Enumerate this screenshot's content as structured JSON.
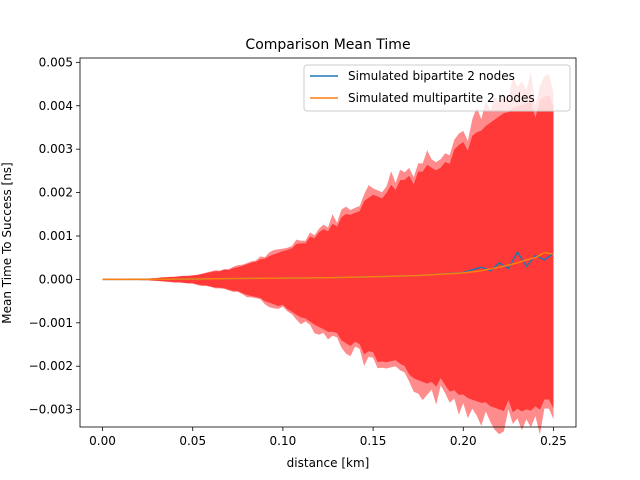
{
  "chart_data": {
    "type": "line",
    "title": "Comparison Mean Time",
    "xlabel": "distance [km]",
    "ylabel": "Mean Time To Success [ns]",
    "xlim": [
      -0.0125,
      0.2625
    ],
    "ylim": [
      -0.0034,
      0.0051
    ],
    "xticks": [
      0.0,
      0.05,
      0.1,
      0.15,
      0.2,
      0.25
    ],
    "xtick_labels": [
      "0.00",
      "0.05",
      "0.10",
      "0.15",
      "0.20",
      "0.25"
    ],
    "yticks": [
      -0.003,
      -0.002,
      -0.001,
      0.0,
      0.001,
      0.002,
      0.003,
      0.004,
      0.005
    ],
    "ytick_labels": [
      "−0.003",
      "−0.002",
      "−0.001",
      "0.000",
      "0.001",
      "0.002",
      "0.003",
      "0.004",
      "0.005"
    ],
    "grid": false,
    "legend_position": "top-right",
    "x": [
      0.0,
      0.025,
      0.05,
      0.075,
      0.1,
      0.125,
      0.15,
      0.175,
      0.2,
      0.21,
      0.215,
      0.22,
      0.225,
      0.23,
      0.235,
      0.24,
      0.245,
      0.25
    ],
    "series": [
      {
        "name": "Simulated bipartite 2 nodes",
        "color": "#1f77b4",
        "values": [
          0.0,
          0.0,
          1e-05,
          2e-05,
          3e-05,
          4e-05,
          6e-05,
          9e-05,
          0.00016,
          0.00028,
          0.0002,
          0.00038,
          0.00025,
          0.00063,
          0.0003,
          0.00055,
          0.00045,
          0.0006
        ]
      },
      {
        "name": "Simulated multipartite 2 nodes",
        "color": "#ff7f0e",
        "values": [
          0.0,
          0.0,
          1e-05,
          2e-05,
          3e-05,
          4e-05,
          6e-05,
          9e-05,
          0.00015,
          0.0002,
          0.00024,
          0.00028,
          0.00033,
          0.00038,
          0.00045,
          0.0005,
          0.00062,
          0.00058
        ]
      }
    ],
    "bands": [
      {
        "color": "#ff0000",
        "x": [
          0.0,
          0.025,
          0.05,
          0.075,
          0.1,
          0.125,
          0.15,
          0.175,
          0.2,
          0.225,
          0.25
        ],
        "upper": [
          0.0,
          2e-05,
          0.0001,
          0.0003,
          0.0007,
          0.0013,
          0.0021,
          0.0027,
          0.0034,
          0.0042,
          0.0046
        ],
        "lower": [
          0.0,
          -2e-05,
          -0.0001,
          -0.0003,
          -0.0007,
          -0.0013,
          -0.002,
          -0.0025,
          -0.0029,
          -0.0033,
          -0.0032
        ]
      }
    ]
  }
}
